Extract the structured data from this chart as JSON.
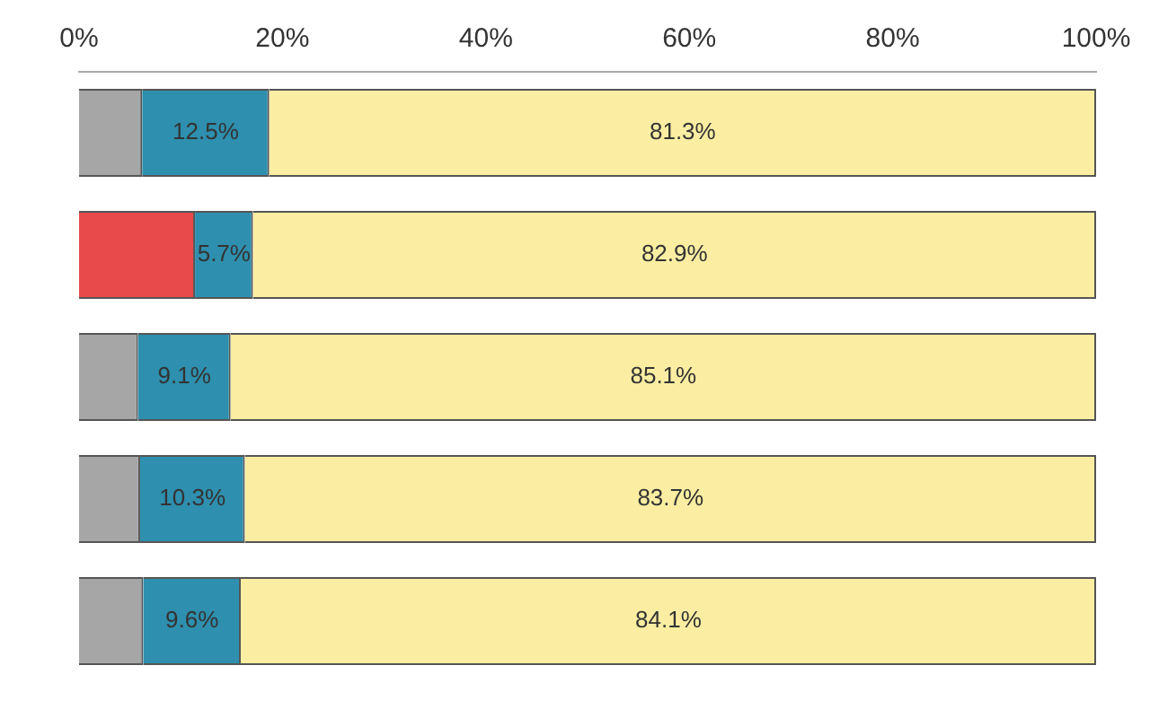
{
  "chart_data": {
    "type": "bar",
    "orientation": "horizontal",
    "stacked": true,
    "categories": [
      null,
      null,
      null,
      null,
      null
    ],
    "series": [
      {
        "colors": [
          "#a6a6a6",
          "#e8494a",
          "#a6a6a6",
          "#a6a6a6",
          "#a6a6a6"
        ],
        "values": [
          6.2,
          11.4,
          5.8,
          6.0,
          6.3
        ]
      },
      {
        "color": "#2e8fae",
        "values": [
          12.5,
          5.7,
          9.1,
          10.3,
          9.6
        ],
        "value_labels": [
          "12.5%",
          "5.7%",
          "9.1%",
          "10.3%",
          "9.6%"
        ]
      },
      {
        "color": "#fbeea2",
        "values": [
          81.3,
          82.9,
          85.1,
          83.7,
          84.1
        ],
        "value_labels": [
          "81.3%",
          "82.9%",
          "85.1%",
          "83.7%",
          "84.1%"
        ]
      }
    ],
    "xlim": [
      0,
      100
    ],
    "xticks": [
      {
        "value": 0,
        "label": "0%"
      },
      {
        "value": 20,
        "label": "20%"
      },
      {
        "value": 40,
        "label": "40%"
      },
      {
        "value": 60,
        "label": "60%"
      },
      {
        "value": 80,
        "label": "80%"
      },
      {
        "value": 100,
        "label": "100%"
      }
    ],
    "grid": false,
    "legend": false
  }
}
